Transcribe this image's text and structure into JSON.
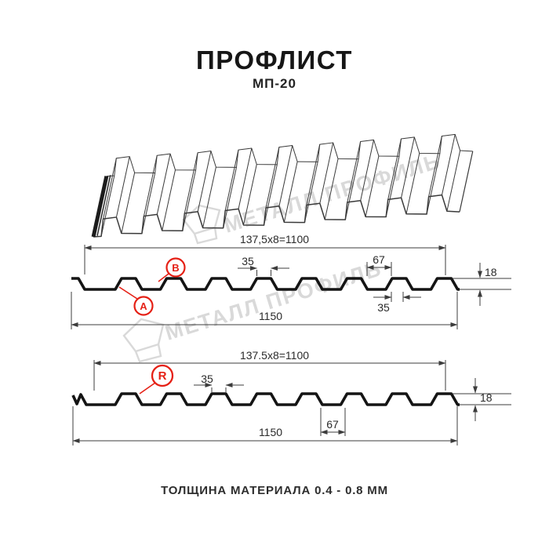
{
  "title": "ПРОФЛИСТ",
  "subtitle": "МП-20",
  "footer": "ТОЛЩИНА МАТЕРИАЛА 0.4 - 0.8 ММ",
  "watermark": {
    "text": "МЕТАЛЛ ПРОФИЛЬ"
  },
  "colors": {
    "red": "#e52015",
    "line_dark": "#141414",
    "dim_line": "#3c3c3c",
    "watermark_gray": "#d9d9d9"
  },
  "profile_top": {
    "module_width": "137,5x8=1100",
    "crest_width": "35",
    "flat_width": "67",
    "height": "18",
    "crest_bottom_width": "35",
    "total_width": "1150",
    "labels": {
      "a": "A",
      "b": "B"
    }
  },
  "profile_bottom": {
    "module_width": "137.5x8=1100",
    "crest_width": "35",
    "flat_width": "67",
    "height": "18",
    "total_width": "1150",
    "labels": {
      "r": "R"
    }
  }
}
